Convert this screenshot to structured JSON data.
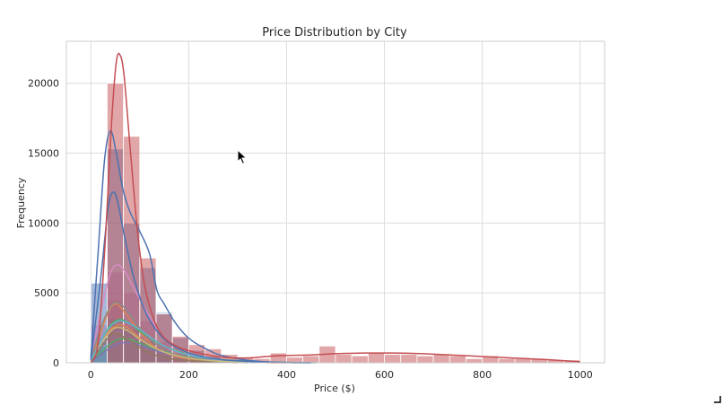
{
  "chart_data": {
    "type": "histogram",
    "title": "Price Distribution by City",
    "xlabel": "Price ($)",
    "ylabel": "Frequency",
    "xlim": [
      -50,
      1050
    ],
    "ylim": [
      0,
      23000
    ],
    "grid": true,
    "legend": "none",
    "x_ticks": [
      0,
      200,
      400,
      600,
      800,
      1000
    ],
    "x_tick_labels": [
      "0",
      "200",
      "400",
      "600",
      "800",
      "1000"
    ],
    "y_ticks": [
      0,
      5000,
      10000,
      15000,
      20000
    ],
    "y_tick_labels": [
      "0",
      "5000",
      "10000",
      "15000",
      "20000"
    ],
    "bin_width": 33.3,
    "series": [
      {
        "color": "#dd8452",
        "bars": [
          {
            "x": 0,
            "h": 1800
          },
          {
            "x": 33.3,
            "h": 4500
          },
          {
            "x": 66.7,
            "h": 2600
          },
          {
            "x": 100,
            "h": 1200
          },
          {
            "x": 133.3,
            "h": 500
          },
          {
            "x": 166.7,
            "h": 250
          },
          {
            "x": 200,
            "h": 120
          }
        ],
        "kde": [
          [
            0,
            200
          ],
          [
            20,
            2100
          ],
          [
            35,
            3600
          ],
          [
            50,
            4200
          ],
          [
            65,
            3800
          ],
          [
            85,
            2900
          ],
          [
            110,
            1800
          ],
          [
            140,
            900
          ],
          [
            180,
            400
          ],
          [
            240,
            150
          ],
          [
            320,
            40
          ],
          [
            400,
            0
          ]
        ]
      },
      {
        "color": "#dd8452",
        "bars": [],
        "kde": [
          [
            0,
            150
          ],
          [
            20,
            1400
          ],
          [
            40,
            2400
          ],
          [
            60,
            2700
          ],
          [
            80,
            2400
          ],
          [
            110,
            1500
          ],
          [
            150,
            700
          ],
          [
            200,
            280
          ],
          [
            280,
            80
          ],
          [
            380,
            0
          ]
        ]
      },
      {
        "color": "#55a868",
        "bars": [
          {
            "x": 0,
            "h": 1500
          },
          {
            "x": 33.3,
            "h": 3200
          },
          {
            "x": 66.7,
            "h": 2500
          },
          {
            "x": 100,
            "h": 1600
          },
          {
            "x": 133.3,
            "h": 900
          },
          {
            "x": 166.7,
            "h": 600
          },
          {
            "x": 200,
            "h": 300
          }
        ],
        "kde": [
          [
            0,
            150
          ],
          [
            20,
            1500
          ],
          [
            40,
            2700
          ],
          [
            60,
            3100
          ],
          [
            80,
            2800
          ],
          [
            110,
            2000
          ],
          [
            150,
            1200
          ],
          [
            200,
            600
          ],
          [
            260,
            250
          ],
          [
            340,
            80
          ],
          [
            440,
            0
          ]
        ]
      },
      {
        "color": "#55a868",
        "bars": [],
        "kde": [
          [
            0,
            100
          ],
          [
            25,
            900
          ],
          [
            50,
            1600
          ],
          [
            75,
            1700
          ],
          [
            100,
            1400
          ],
          [
            140,
            900
          ],
          [
            190,
            450
          ],
          [
            250,
            180
          ],
          [
            330,
            60
          ],
          [
            420,
            0
          ]
        ]
      },
      {
        "color": "#8172b3",
        "bars": [],
        "kde": [
          [
            0,
            80
          ],
          [
            25,
            700
          ],
          [
            50,
            1300
          ],
          [
            75,
            1450
          ],
          [
            100,
            1250
          ],
          [
            140,
            800
          ],
          [
            190,
            400
          ],
          [
            260,
            150
          ],
          [
            350,
            40
          ],
          [
            450,
            0
          ]
        ]
      },
      {
        "color": "#937860",
        "bars": [],
        "kde": [
          [
            0,
            100
          ],
          [
            25,
            1300
          ],
          [
            45,
            2100
          ],
          [
            65,
            1900
          ],
          [
            90,
            1300
          ],
          [
            120,
            700
          ],
          [
            160,
            300
          ],
          [
            220,
            100
          ],
          [
            300,
            0
          ]
        ]
      },
      {
        "color": "#da8bc3",
        "bars": [
          {
            "x": 0,
            "h": 2700
          },
          {
            "x": 33.3,
            "h": 6500
          },
          {
            "x": 66.7,
            "h": 5000
          },
          {
            "x": 100,
            "h": 3000
          },
          {
            "x": 133.3,
            "h": 1500
          },
          {
            "x": 166.7,
            "h": 700
          }
        ],
        "kde": [
          [
            0,
            300
          ],
          [
            20,
            3600
          ],
          [
            40,
            6400
          ],
          [
            55,
            7000
          ],
          [
            70,
            6500
          ],
          [
            90,
            5200
          ],
          [
            115,
            3600
          ],
          [
            145,
            2000
          ],
          [
            185,
            900
          ],
          [
            240,
            300
          ],
          [
            320,
            60
          ],
          [
            400,
            0
          ]
        ]
      },
      {
        "color": "#8c8c8c",
        "bars": [],
        "kde": [
          [
            0,
            200
          ],
          [
            20,
            2500
          ],
          [
            40,
            4000
          ],
          [
            55,
            4300
          ],
          [
            75,
            3700
          ],
          [
            100,
            2500
          ],
          [
            135,
            1300
          ],
          [
            180,
            500
          ],
          [
            240,
            150
          ],
          [
            320,
            0
          ]
        ]
      },
      {
        "color": "#ccb974",
        "bars": [
          {
            "x": 0,
            "h": 1000
          },
          {
            "x": 33.3,
            "h": 2200
          },
          {
            "x": 66.7,
            "h": 1700
          },
          {
            "x": 100,
            "h": 1000
          }
        ],
        "kde": [
          [
            0,
            150
          ],
          [
            25,
            1600
          ],
          [
            50,
            2500
          ],
          [
            75,
            2300
          ],
          [
            100,
            1700
          ],
          [
            140,
            900
          ],
          [
            190,
            400
          ],
          [
            250,
            150
          ],
          [
            330,
            40
          ],
          [
            420,
            0
          ]
        ]
      },
      {
        "color": "#64b5cd",
        "bars": [
          {
            "x": 0,
            "h": 1200
          },
          {
            "x": 33.3,
            "h": 2800
          },
          {
            "x": 66.7,
            "h": 2400
          },
          {
            "x": 100,
            "h": 1600
          },
          {
            "x": 133.3,
            "h": 900
          }
        ],
        "kde": [
          [
            0,
            150
          ],
          [
            20,
            1500
          ],
          [
            40,
            2600
          ],
          [
            60,
            3000
          ],
          [
            85,
            2700
          ],
          [
            115,
            2000
          ],
          [
            150,
            1200
          ],
          [
            200,
            550
          ],
          [
            270,
            200
          ],
          [
            360,
            50
          ],
          [
            460,
            0
          ]
        ]
      },
      {
        "color": "#4c72b0",
        "bars": [],
        "kde": [
          [
            0,
            200
          ],
          [
            20,
            6000
          ],
          [
            35,
            11000
          ],
          [
            45,
            12200
          ],
          [
            55,
            11500
          ],
          [
            70,
            8800
          ],
          [
            90,
            5800
          ],
          [
            115,
            3400
          ],
          [
            150,
            1700
          ],
          [
            200,
            700
          ],
          [
            270,
            220
          ],
          [
            360,
            50
          ],
          [
            450,
            0
          ]
        ]
      },
      {
        "color": "#4c72b0",
        "bars": [
          {
            "x": 0,
            "h": 5700
          },
          {
            "x": 33.3,
            "h": 15300
          },
          {
            "x": 66.7,
            "h": 10000
          },
          {
            "x": 100,
            "h": 6800
          },
          {
            "x": 133.3,
            "h": 3600
          },
          {
            "x": 166.7,
            "h": 1800
          },
          {
            "x": 200,
            "h": 900
          },
          {
            "x": 233.3,
            "h": 450
          },
          {
            "x": 266.7,
            "h": 250
          }
        ],
        "kde": [
          [
            0,
            400
          ],
          [
            15,
            8000
          ],
          [
            28,
            14500
          ],
          [
            40,
            16600
          ],
          [
            52,
            15000
          ],
          [
            65,
            12500
          ],
          [
            80,
            10800
          ],
          [
            100,
            9400
          ],
          [
            120,
            7800
          ],
          [
            135,
            5200
          ],
          [
            150,
            4200
          ],
          [
            170,
            3000
          ],
          [
            190,
            2100
          ],
          [
            210,
            1500
          ],
          [
            235,
            1000
          ],
          [
            260,
            600
          ],
          [
            290,
            350
          ],
          [
            330,
            150
          ],
          [
            380,
            40
          ],
          [
            450,
            0
          ]
        ]
      },
      {
        "color": "#c44e52",
        "bars": [
          {
            "x": 33.3,
            "h": 20000
          },
          {
            "x": 66.7,
            "h": 16200
          },
          {
            "x": 100,
            "h": 7500
          },
          {
            "x": 133.3,
            "h": 3500
          },
          {
            "x": 166.7,
            "h": 1900
          },
          {
            "x": 200,
            "h": 1300
          },
          {
            "x": 233.3,
            "h": 1000
          },
          {
            "x": 266.7,
            "h": 600
          },
          {
            "x": 300,
            "h": 400
          },
          {
            "x": 333.3,
            "h": 300
          },
          {
            "x": 366.7,
            "h": 700
          },
          {
            "x": 400,
            "h": 400
          },
          {
            "x": 433.3,
            "h": 500
          },
          {
            "x": 466.7,
            "h": 1200
          },
          {
            "x": 500,
            "h": 600
          },
          {
            "x": 533.3,
            "h": 500
          },
          {
            "x": 566.7,
            "h": 700
          },
          {
            "x": 600,
            "h": 600
          },
          {
            "x": 633.3,
            "h": 600
          },
          {
            "x": 666.7,
            "h": 500
          },
          {
            "x": 700,
            "h": 600
          },
          {
            "x": 733.3,
            "h": 500
          },
          {
            "x": 766.7,
            "h": 300
          },
          {
            "x": 800,
            "h": 500
          },
          {
            "x": 833.3,
            "h": 300
          },
          {
            "x": 866.7,
            "h": 300
          },
          {
            "x": 900,
            "h": 300
          },
          {
            "x": 933.3,
            "h": 200
          },
          {
            "x": 966.7,
            "h": 200
          }
        ],
        "kde": [
          [
            0,
            0
          ],
          [
            15,
            1500
          ],
          [
            30,
            9000
          ],
          [
            42,
            17000
          ],
          [
            52,
            21500
          ],
          [
            60,
            22000
          ],
          [
            68,
            20500
          ],
          [
            80,
            15500
          ],
          [
            95,
            9500
          ],
          [
            110,
            5500
          ],
          [
            130,
            3000
          ],
          [
            150,
            1800
          ],
          [
            180,
            1100
          ],
          [
            220,
            700
          ],
          [
            270,
            400
          ],
          [
            320,
            350
          ],
          [
            380,
            500
          ],
          [
            440,
            550
          ],
          [
            500,
            650
          ],
          [
            560,
            700
          ],
          [
            620,
            700
          ],
          [
            680,
            650
          ],
          [
            740,
            550
          ],
          [
            800,
            450
          ],
          [
            860,
            350
          ],
          [
            920,
            250
          ],
          [
            980,
            120
          ],
          [
            1000,
            80
          ]
        ]
      }
    ]
  }
}
